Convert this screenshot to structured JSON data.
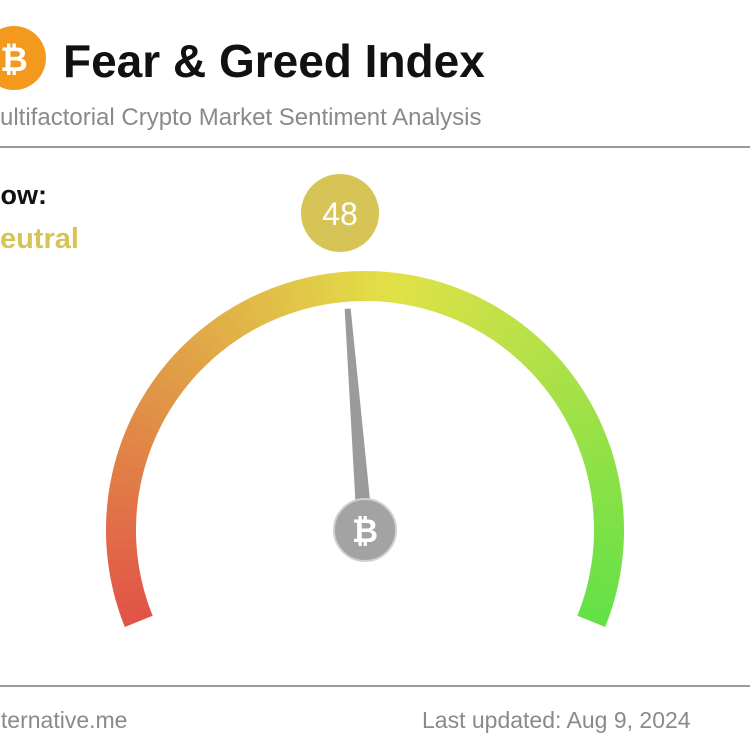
{
  "chart_data": {
    "type": "gauge",
    "title": "Fear & Greed Index",
    "subtitle": "Multifactorial Crypto Market Sentiment Analysis",
    "now_label": "Now:",
    "classification": "Neutral",
    "value": 48,
    "ylim": [
      0,
      100
    ],
    "color": "#d6c456",
    "source": "alternative.me",
    "updated": "Last updated: Aug 9, 2024"
  }
}
